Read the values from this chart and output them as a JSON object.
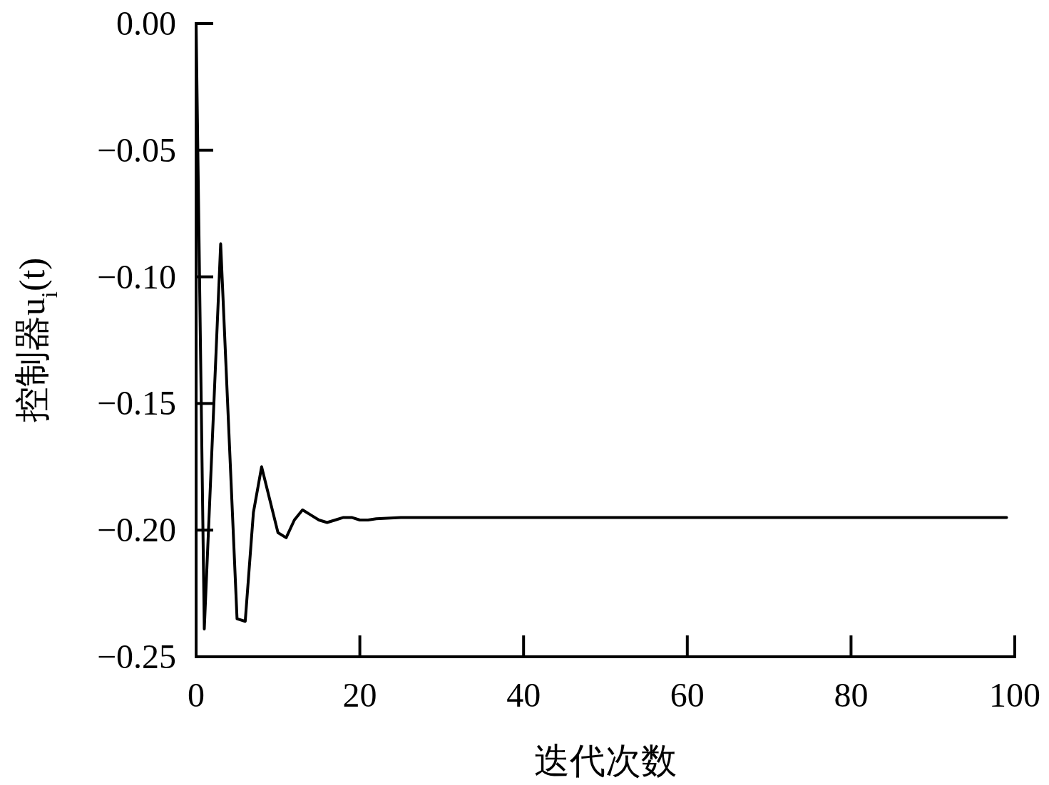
{
  "chart_data": {
    "type": "line",
    "xlabel": "迭代次数",
    "ylabel": "控制器u$_{i}$(t)",
    "x": [
      0,
      1,
      3,
      5,
      6,
      7,
      8,
      9,
      10,
      11,
      12,
      13,
      14,
      15,
      16,
      17,
      18,
      19,
      20,
      21,
      22,
      25,
      30,
      40,
      50,
      60,
      70,
      80,
      90,
      99
    ],
    "series": [
      {
        "color": "#000000",
        "values": [
          0,
          -0.239,
          -0.087,
          -0.235,
          -0.236,
          -0.193,
          -0.175,
          -0.188,
          -0.201,
          -0.203,
          -0.196,
          -0.192,
          -0.194,
          -0.196,
          -0.197,
          -0.196,
          -0.195,
          -0.195,
          -0.196,
          -0.196,
          -0.1955,
          -0.195,
          -0.195,
          -0.195,
          -0.195,
          -0.195,
          -0.195,
          -0.195,
          -0.195,
          -0.195
        ]
      }
    ],
    "xlim": [
      0,
      100
    ],
    "ylim": [
      -0.25,
      0
    ],
    "xticks": [
      0,
      20,
      40,
      60,
      80,
      100
    ],
    "yticks": [
      {
        "value": 0,
        "label": "0.00"
      },
      {
        "value": -0.05,
        "label": "−0.05"
      },
      {
        "value": -0.1,
        "label": "−0.10"
      },
      {
        "value": -0.15,
        "label": "−0.15"
      },
      {
        "value": -0.2,
        "label": "−0.20"
      },
      {
        "value": -0.25,
        "label": "−0.25"
      }
    ],
    "grid": false,
    "marker": "none",
    "line_style": "solid"
  }
}
